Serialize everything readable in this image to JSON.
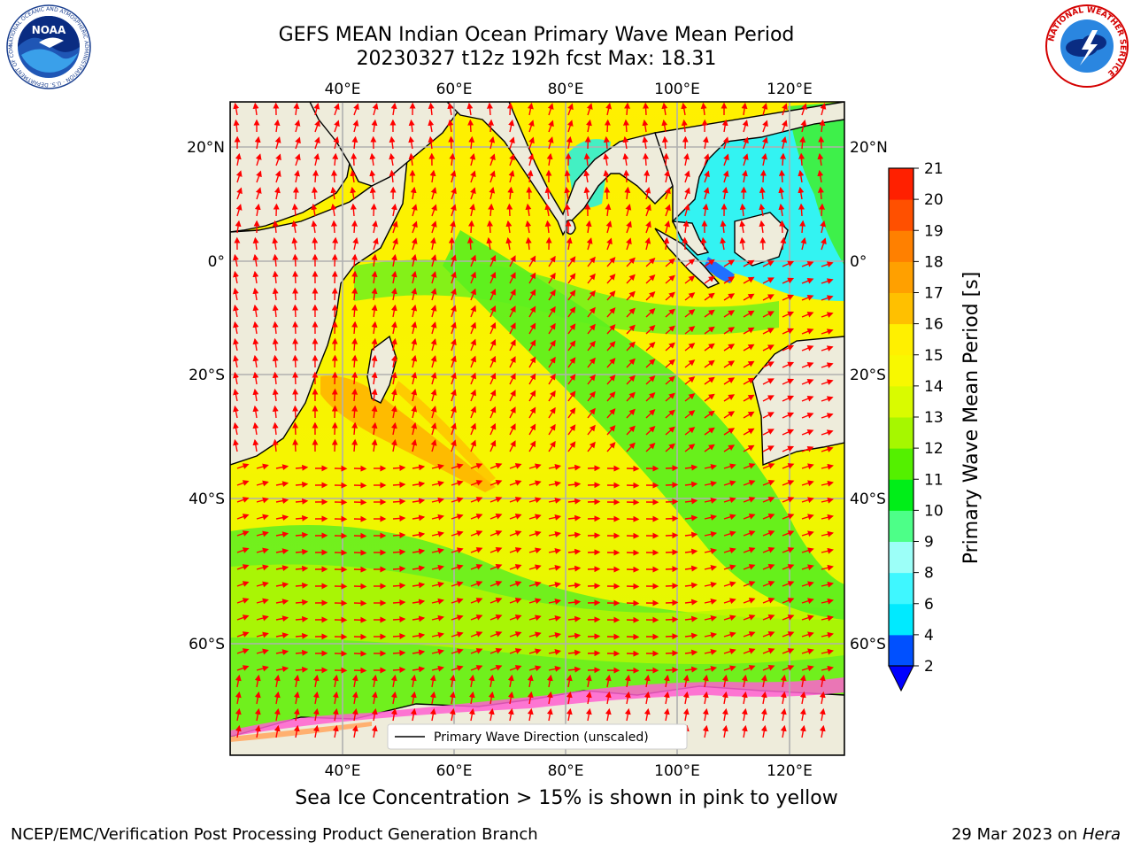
{
  "header": {
    "title_line1": "GEFS MEAN Indian Ocean Primary Wave Mean Period",
    "title_line2": "20230327 t12z 192h fcst   Max: 18.31"
  },
  "logos": {
    "noaa_text": "NOAA",
    "noaa_ring": "NATIONAL OCEANIC AND ATMOSPHERIC ADMINISTRATION · U.S. DEPARTMENT OF COMMERCE",
    "nws_ring": "NATIONAL WEATHER SERVICE"
  },
  "map": {
    "lon_ticks": [
      "40°E",
      "60°E",
      "80°E",
      "100°E",
      "120°E"
    ],
    "lat_ticks_left": [
      "20°N",
      "0°",
      "20°S",
      "40°S",
      "60°S"
    ],
    "lat_ticks_right": [
      "20°N",
      "0°",
      "20°S",
      "40°S",
      "60°S"
    ],
    "lon_range": [
      20,
      130
    ],
    "lat_range": [
      -72,
      28
    ],
    "grid": true,
    "legend_label": "Primary Wave Direction (unscaled)",
    "arrow_color": "#ff0000"
  },
  "colorbar": {
    "label": "Primary Wave Mean Period [s]",
    "ticks": [
      "2",
      "4",
      "6",
      "8",
      "9",
      "10",
      "11",
      "12",
      "13",
      "14",
      "15",
      "16",
      "17",
      "18",
      "19",
      "20",
      "21"
    ],
    "colors": [
      "#0050ff",
      "#00eaff",
      "#3ff7ff",
      "#9cfff8",
      "#4dff88",
      "#00ee18",
      "#54f000",
      "#a6f700",
      "#d9fb00",
      "#f8f800",
      "#fff000",
      "#ffc000",
      "#ffa000",
      "#ff8000",
      "#ff5000",
      "#ff2000"
    ],
    "extend_color": "#0000ff"
  },
  "caption": "Sea Ice Concentration > 15% is shown in pink to yellow",
  "footer": {
    "left": "NCEP/EMC/Verification Post Processing Product Generation Branch",
    "right_date": "29 Mar 2023 on ",
    "right_host": "Hera"
  }
}
